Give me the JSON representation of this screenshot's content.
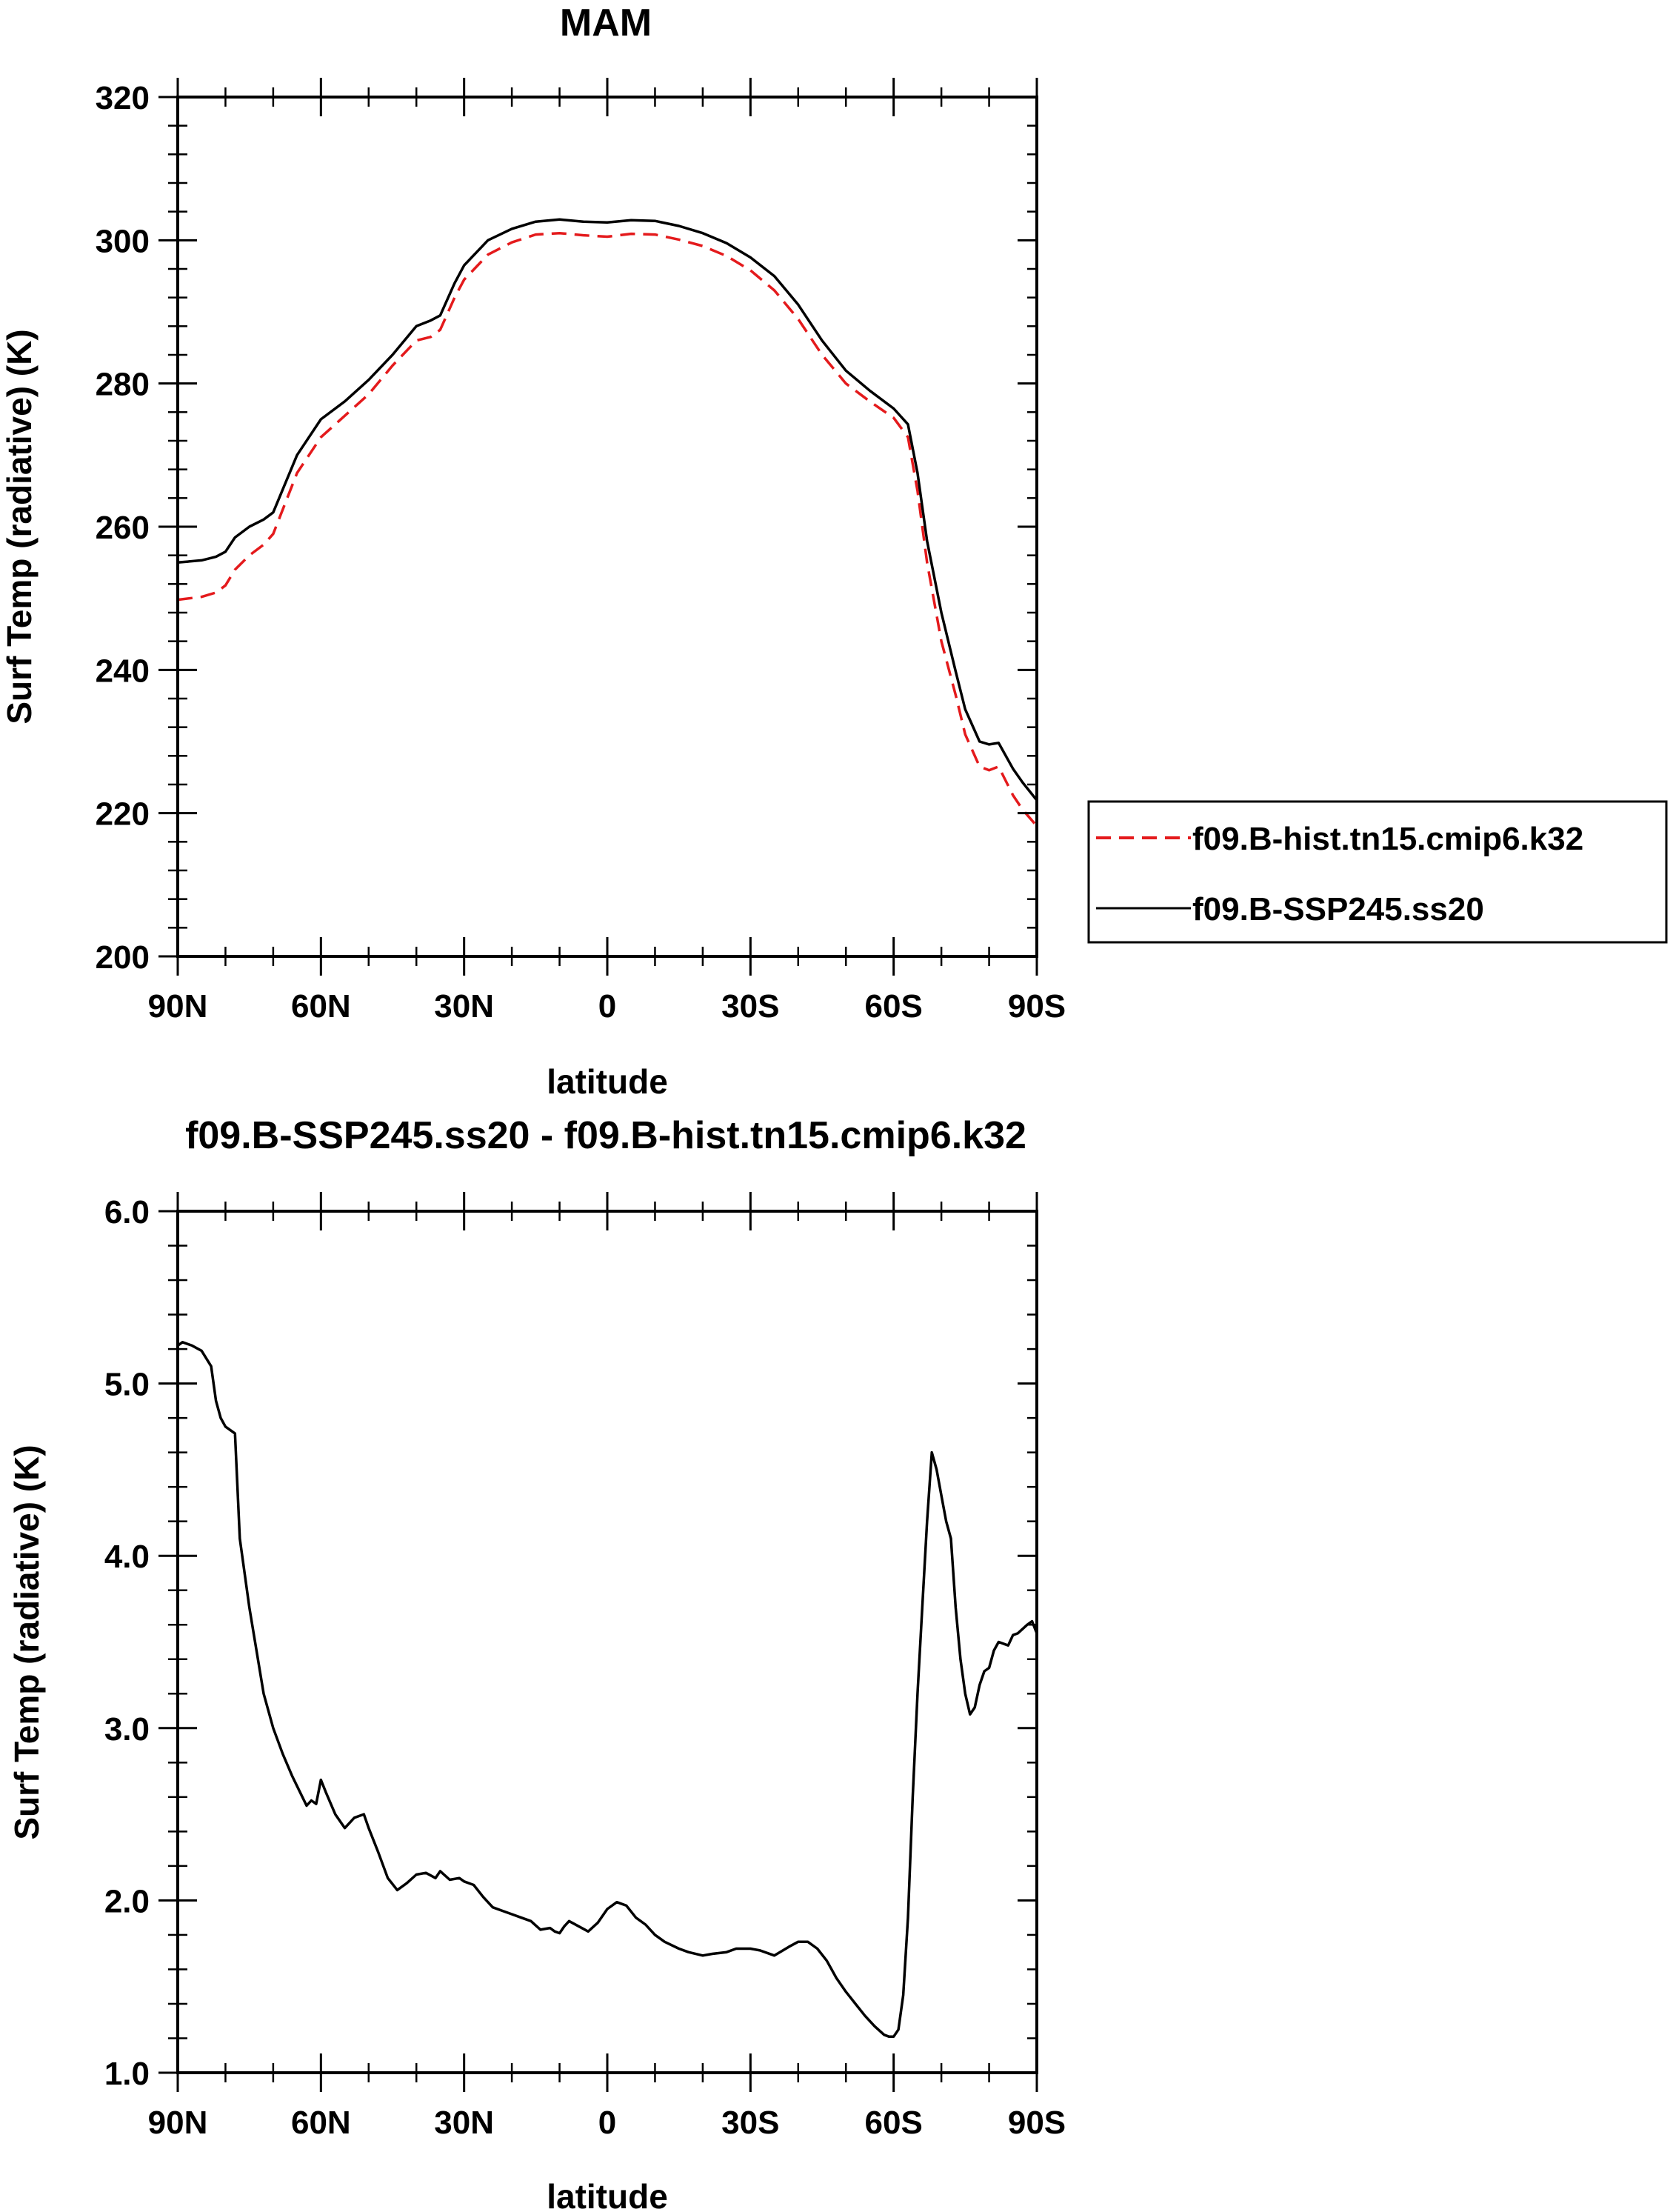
{
  "chart_data": [
    {
      "type": "line",
      "title": "MAM",
      "xlabel": "latitude",
      "ylabel": "Surf Temp (radiative) (K)",
      "ylim": [
        200,
        320
      ],
      "yticks": [
        "200",
        "220",
        "240",
        "260",
        "280",
        "300",
        "320"
      ],
      "xlim": [
        90,
        -90
      ],
      "xticks": [
        {
          "value": 90,
          "label": "90N"
        },
        {
          "value": 60,
          "label": "60N"
        },
        {
          "value": 30,
          "label": "30N"
        },
        {
          "value": 0,
          "label": "0"
        },
        {
          "value": -30,
          "label": "30S"
        },
        {
          "value": -60,
          "label": "60S"
        },
        {
          "value": -90,
          "label": "90S"
        }
      ],
      "legend": {
        "position": "right",
        "entries": [
          "f09.B-hist.tn15.cmip6.k32",
          "f09.B-SSP245.ss20"
        ]
      },
      "series": [
        {
          "name": "f09.B-hist.tn15.cmip6.k32",
          "color": "#e41a1c",
          "style": "dashed",
          "x": [
            90,
            85,
            82,
            80,
            78,
            75,
            72,
            70,
            65,
            60,
            55,
            50,
            45,
            40,
            37,
            35,
            32,
            30,
            25,
            20,
            15,
            10,
            5,
            0,
            -5,
            -10,
            -15,
            -20,
            -25,
            -30,
            -35,
            -40,
            -45,
            -50,
            -55,
            -60,
            -63,
            -65,
            -67,
            -70,
            -73,
            -75,
            -78,
            -80,
            -82,
            -85,
            -87,
            -90
          ],
          "y": [
            249.8,
            250.2,
            250.8,
            251.8,
            254.0,
            256.0,
            257.5,
            259.0,
            267.5,
            272.5,
            275.5,
            278.5,
            282.5,
            286.0,
            286.5,
            287.5,
            292.0,
            294.5,
            298.0,
            299.7,
            300.8,
            301.0,
            300.7,
            300.5,
            300.9,
            300.8,
            300.1,
            299.2,
            297.8,
            295.8,
            293.0,
            289.0,
            284.0,
            280.0,
            277.5,
            275.2,
            272.5,
            265.0,
            255.0,
            244.0,
            236.5,
            231.0,
            226.5,
            226.0,
            226.5,
            222.5,
            220.5,
            218.2
          ]
        },
        {
          "name": "f09.B-SSP245.ss20",
          "color": "#000000",
          "style": "solid",
          "x": [
            90,
            85,
            82,
            80,
            78,
            75,
            72,
            70,
            65,
            60,
            55,
            50,
            45,
            40,
            37,
            35,
            32,
            30,
            25,
            20,
            15,
            10,
            5,
            0,
            -5,
            -10,
            -15,
            -20,
            -25,
            -30,
            -35,
            -40,
            -45,
            -50,
            -55,
            -60,
            -63,
            -65,
            -67,
            -70,
            -73,
            -75,
            -78,
            -80,
            -82,
            -85,
            -87,
            -90
          ],
          "y": [
            255.0,
            255.3,
            255.8,
            256.5,
            258.5,
            260.0,
            261.0,
            262.0,
            270.0,
            275.0,
            277.5,
            280.5,
            284.0,
            288.0,
            288.8,
            289.5,
            294.0,
            296.5,
            300.0,
            301.6,
            302.6,
            302.9,
            302.6,
            302.5,
            302.8,
            302.7,
            302.0,
            301.0,
            299.6,
            297.6,
            295.0,
            291.0,
            286.0,
            281.8,
            279.0,
            276.5,
            274.3,
            267.5,
            258.0,
            248.0,
            239.8,
            234.5,
            230.0,
            229.6,
            229.8,
            226.2,
            224.3,
            221.8
          ]
        }
      ]
    },
    {
      "type": "line",
      "title": "f09.B-SSP245.ss20 - f09.B-hist.tn15.cmip6.k32",
      "xlabel": "latitude",
      "ylabel": "Surf Temp (radiative) (K)",
      "ylim": [
        1.0,
        6.0
      ],
      "yticks": [
        "1.0",
        "2.0",
        "3.0",
        "4.0",
        "5.0",
        "6.0"
      ],
      "xlim": [
        90,
        -90
      ],
      "xticks": [
        {
          "value": 90,
          "label": "90N"
        },
        {
          "value": 60,
          "label": "60N"
        },
        {
          "value": 30,
          "label": "30N"
        },
        {
          "value": 0,
          "label": "0"
        },
        {
          "value": -30,
          "label": "30S"
        },
        {
          "value": -60,
          "label": "60S"
        },
        {
          "value": -90,
          "label": "90S"
        }
      ],
      "series": [
        {
          "name": "f09.B-SSP245.ss20 - f09.B-hist.tn15.cmip6.k32",
          "color": "#000000",
          "style": "solid",
          "x": [
            90,
            89,
            87,
            85,
            83,
            82,
            81,
            80,
            78,
            77,
            75,
            72,
            70,
            68,
            66,
            63,
            62,
            61,
            60,
            59,
            57,
            55,
            53,
            51,
            50,
            48,
            46,
            44,
            42,
            40,
            38,
            36,
            35,
            33,
            31,
            30,
            28,
            26,
            24,
            22,
            20,
            18,
            16,
            14,
            12,
            11,
            10,
            9,
            8,
            6,
            4,
            2,
            0,
            -2,
            -4,
            -6,
            -8,
            -10,
            -12,
            -15,
            -17,
            -20,
            -22,
            -25,
            -27,
            -30,
            -32,
            -35,
            -38,
            -40,
            -42,
            -44,
            -46,
            -48,
            -50,
            -52,
            -54,
            -56,
            -58,
            -59,
            -60,
            -61,
            -62,
            -63,
            -64,
            -65,
            -66,
            -67,
            -68,
            -69,
            -70,
            -71,
            -72,
            -73,
            -74,
            -75,
            -76,
            -77,
            -78,
            -79,
            -80,
            -81,
            -82,
            -84,
            -85,
            -86,
            -88,
            -89,
            -90
          ],
          "y": [
            5.22,
            5.24,
            5.22,
            5.19,
            5.1,
            4.9,
            4.8,
            4.75,
            4.71,
            4.1,
            3.7,
            3.2,
            3.0,
            2.85,
            2.72,
            2.55,
            2.58,
            2.56,
            2.7,
            2.63,
            2.5,
            2.42,
            2.48,
            2.5,
            2.42,
            2.28,
            2.13,
            2.06,
            2.1,
            2.15,
            2.16,
            2.13,
            2.17,
            2.12,
            2.13,
            2.11,
            2.09,
            2.02,
            1.96,
            1.94,
            1.92,
            1.9,
            1.88,
            1.83,
            1.84,
            1.82,
            1.81,
            1.85,
            1.88,
            1.85,
            1.82,
            1.87,
            1.95,
            1.99,
            1.97,
            1.9,
            1.86,
            1.8,
            1.76,
            1.72,
            1.7,
            1.68,
            1.69,
            1.7,
            1.72,
            1.72,
            1.71,
            1.68,
            1.73,
            1.76,
            1.76,
            1.72,
            1.65,
            1.55,
            1.47,
            1.4,
            1.33,
            1.27,
            1.22,
            1.21,
            1.21,
            1.25,
            1.45,
            1.9,
            2.6,
            3.2,
            3.7,
            4.2,
            4.6,
            4.5,
            4.35,
            4.2,
            4.1,
            3.7,
            3.4,
            3.2,
            3.08,
            3.12,
            3.25,
            3.33,
            3.35,
            3.45,
            3.5,
            3.48,
            3.54,
            3.55,
            3.6,
            3.62,
            3.55
          ]
        }
      ]
    }
  ]
}
